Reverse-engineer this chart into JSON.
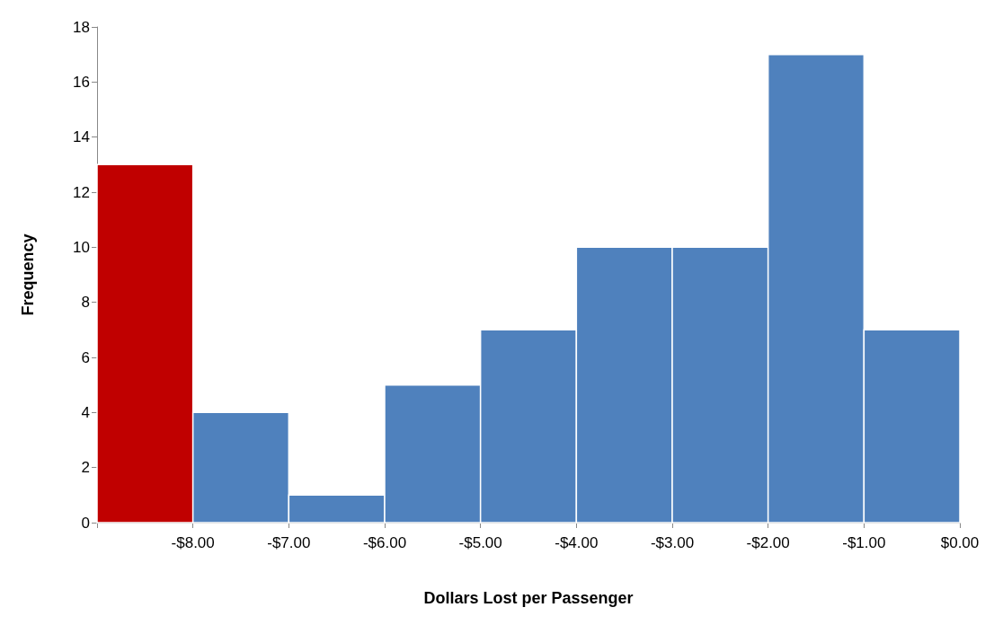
{
  "chart_data": {
    "type": "histogram",
    "xlabel": "Dollars Lost per Passenger",
    "ylabel": "Frequency",
    "bins": [
      -9,
      -8,
      -7,
      -6,
      -5,
      -4,
      -3,
      -2,
      -1,
      0
    ],
    "values": [
      13,
      4,
      1,
      5,
      7,
      10,
      10,
      17,
      7
    ],
    "colors": [
      "#c00000",
      "#4f81bd",
      "#4f81bd",
      "#4f81bd",
      "#4f81bd",
      "#4f81bd",
      "#4f81bd",
      "#4f81bd",
      "#4f81bd"
    ],
    "xlim": [
      -9,
      0
    ],
    "xticks": [
      {
        "value": -9,
        "label": null
      },
      {
        "value": -8,
        "label": "-$8.00"
      },
      {
        "value": -7,
        "label": "-$7.00"
      },
      {
        "value": -6,
        "label": "-$6.00"
      },
      {
        "value": -5,
        "label": "-$5.00"
      },
      {
        "value": -4,
        "label": "-$4.00"
      },
      {
        "value": -3,
        "label": "-$3.00"
      },
      {
        "value": -2,
        "label": "-$2.00"
      },
      {
        "value": -1,
        "label": "-$1.00"
      },
      {
        "value": 0,
        "label": "$0.00"
      }
    ],
    "ylim": [
      0,
      18
    ],
    "yticks": [
      0,
      2,
      4,
      6,
      8,
      10,
      12,
      14,
      16,
      18
    ],
    "grid": false
  }
}
